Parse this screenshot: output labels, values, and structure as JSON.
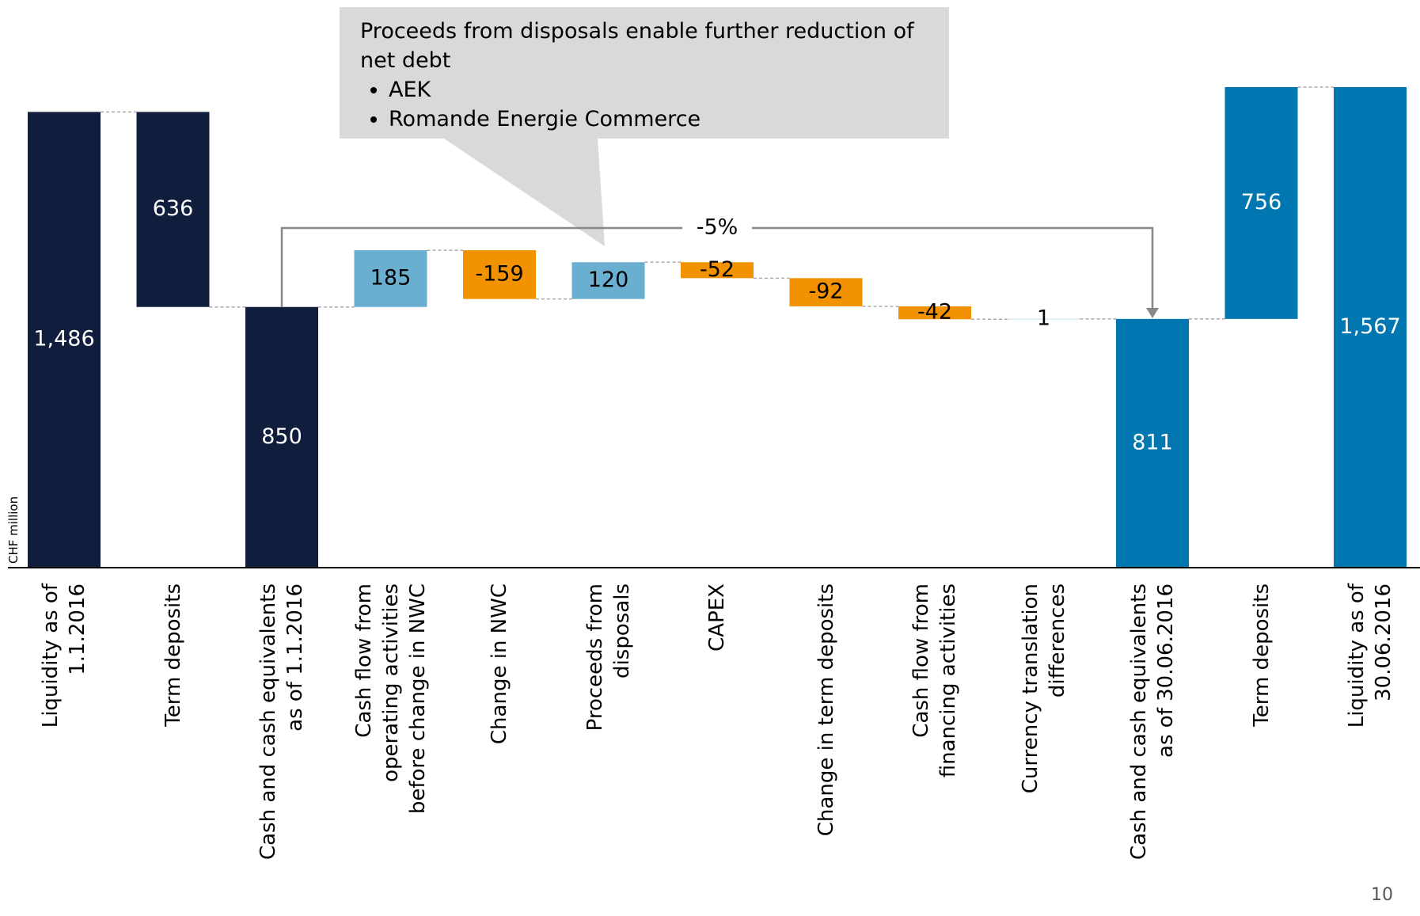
{
  "chart_data": {
    "type": "waterfall",
    "y_label": "CHF million",
    "categories": [
      "Liquidity as of\n1.1.2016",
      "Term deposits",
      "Cash and cash equivalents\nas of 1.1.2016",
      "Cash flow from\noperating activities\nbefore change in NWC",
      "Change in NWC",
      "Proceeds from\ndisposals",
      "CAPEX",
      "Change in term deposits",
      "Cash flow from\nfinancing activities",
      "Currency translation\ndifferences",
      "Cash and cash equivalents\nas of 30.06.2016",
      "Term deposits",
      "Liquidity as of\n30.06.2016"
    ],
    "measures": [
      "total",
      "decrease",
      "total",
      "increase",
      "decrease",
      "increase",
      "decrease",
      "decrease",
      "decrease",
      "increase",
      "total",
      "increase",
      "total"
    ],
    "values": [
      1486,
      636,
      850,
      185,
      -159,
      120,
      -52,
      -92,
      -42,
      1,
      811,
      756,
      1567
    ],
    "value_labels": [
      "1,486",
      "636",
      "850",
      "185",
      "-159",
      "120",
      "-52",
      "-92",
      "-42",
      "1",
      "811",
      "756",
      "1,567"
    ],
    "colors": [
      "#111d3c",
      "#111d3c",
      "#111d3c",
      "#6aaed0",
      "#f39200",
      "#6aaed0",
      "#f39200",
      "#f39200",
      "#f39200",
      "#6aaed0",
      "#0077b0",
      "#0077b0",
      "#0077b0"
    ],
    "bracket_label": "-5%",
    "callout": {
      "text": "Proceeds from disposals enable further reduction of net debt",
      "bullets": [
        "AEK",
        "Romande Energie Commerce"
      ]
    },
    "page_number": "10"
  }
}
